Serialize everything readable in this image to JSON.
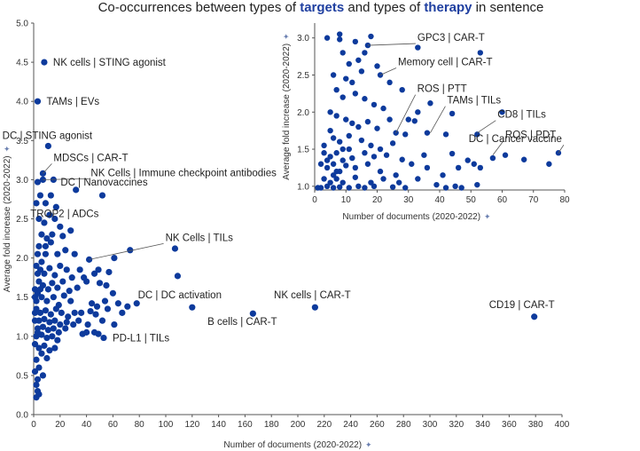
{
  "title": {
    "pre": "Co-occurrences between types of ",
    "em1": "targets",
    "mid": " and types of ",
    "em2": "therapy",
    "post": " in sentence"
  },
  "pin_glyph": "✦",
  "chart_data": [
    {
      "id": "main",
      "type": "scatter",
      "xlabel": "Number of documents (2020-2022)",
      "ylabel": "Average fold increase (2020-2022)",
      "xlim": [
        0,
        400
      ],
      "ylim": [
        0,
        5
      ],
      "xticks": [
        0,
        20,
        40,
        60,
        80,
        100,
        120,
        140,
        160,
        180,
        200,
        220,
        240,
        260,
        280,
        300,
        320,
        340,
        360,
        380,
        400
      ],
      "yticks": [
        0.0,
        0.5,
        1.0,
        1.5,
        2.0,
        2.5,
        3.0,
        3.5,
        4.0,
        4.5,
        5.0
      ],
      "ytick_labels": [
        "0.0",
        "0.5",
        "1.0",
        "1.5",
        "2.0",
        "2.5",
        "3.0",
        "3.5",
        "4.0",
        "4.5",
        "5.0"
      ],
      "points": [
        [
          8,
          4.5
        ],
        [
          3,
          4.0
        ],
        [
          11,
          3.43
        ],
        [
          7,
          3.08
        ],
        [
          7,
          3.0
        ],
        [
          15,
          3.0
        ],
        [
          32,
          2.87
        ],
        [
          52,
          2.8
        ],
        [
          3,
          2.97
        ],
        [
          2,
          2.7
        ],
        [
          5,
          2.8
        ],
        [
          9,
          2.7
        ],
        [
          13,
          2.8
        ],
        [
          17,
          2.65
        ],
        [
          4,
          2.5
        ],
        [
          8,
          2.45
        ],
        [
          12,
          2.55
        ],
        [
          16,
          2.5
        ],
        [
          20,
          2.4
        ],
        [
          6,
          2.3
        ],
        [
          10,
          2.25
        ],
        [
          14,
          2.3
        ],
        [
          9,
          2.15
        ],
        [
          13,
          2.2
        ],
        [
          3,
          2.05
        ],
        [
          18,
          2.05
        ],
        [
          24,
          2.1
        ],
        [
          31,
          2.05
        ],
        [
          42,
          1.98
        ],
        [
          61,
          2.0
        ],
        [
          73,
          2.1
        ],
        [
          2,
          1.9
        ],
        [
          5,
          1.85
        ],
        [
          8,
          1.8
        ],
        [
          12,
          1.87
        ],
        [
          16,
          1.78
        ],
        [
          20,
          1.9
        ],
        [
          25,
          1.85
        ],
        [
          29,
          1.75
        ],
        [
          35,
          1.85
        ],
        [
          38,
          1.75
        ],
        [
          46,
          1.8
        ],
        [
          57,
          1.82
        ],
        [
          4,
          1.7
        ],
        [
          7,
          1.65
        ],
        [
          11,
          1.6
        ],
        [
          14,
          1.68
        ],
        [
          18,
          1.62
        ],
        [
          22,
          1.7
        ],
        [
          27,
          1.58
        ],
        [
          33,
          1.62
        ],
        [
          40,
          1.7
        ],
        [
          50,
          1.68
        ],
        [
          3,
          1.55
        ],
        [
          6,
          1.5
        ],
        [
          10,
          1.45
        ],
        [
          15,
          1.5
        ],
        [
          19,
          1.4
        ],
        [
          23,
          1.52
        ],
        [
          28,
          1.45
        ],
        [
          44,
          1.42
        ],
        [
          48,
          1.38
        ],
        [
          54,
          1.45
        ],
        [
          64,
          1.42
        ],
        [
          71,
          1.38
        ],
        [
          78,
          1.42
        ],
        [
          2,
          1.35
        ],
        [
          5,
          1.3
        ],
        [
          9,
          1.33
        ],
        [
          13,
          1.28
        ],
        [
          17,
          1.35
        ],
        [
          21,
          1.3
        ],
        [
          26,
          1.25
        ],
        [
          31,
          1.3
        ],
        [
          36,
          1.3
        ],
        [
          43,
          1.32
        ],
        [
          47,
          1.28
        ],
        [
          56,
          1.35
        ],
        [
          67,
          1.3
        ],
        [
          4,
          1.2
        ],
        [
          8,
          1.22
        ],
        [
          12,
          1.18
        ],
        [
          16,
          1.2
        ],
        [
          20,
          1.15
        ],
        [
          25,
          1.18
        ],
        [
          30,
          1.15
        ],
        [
          34,
          1.2
        ],
        [
          41,
          1.15
        ],
        [
          52,
          1.2
        ],
        [
          61,
          1.15
        ],
        [
          3,
          1.1
        ],
        [
          7,
          1.12
        ],
        [
          11,
          1.08
        ],
        [
          15,
          1.1
        ],
        [
          19,
          1.05
        ],
        [
          24,
          1.1
        ],
        [
          2,
          1.0
        ],
        [
          6,
          1.02
        ],
        [
          10,
          0.98
        ],
        [
          14,
          1.0
        ],
        [
          18,
          0.95
        ],
        [
          37,
          1.03
        ],
        [
          40,
          1.05
        ],
        [
          46,
          1.05
        ],
        [
          49,
          1.03
        ],
        [
          1,
          0.9
        ],
        [
          4,
          0.85
        ],
        [
          8,
          0.88
        ],
        [
          12,
          0.82
        ],
        [
          16,
          0.85
        ],
        [
          6,
          0.78
        ],
        [
          10,
          0.72
        ],
        [
          2,
          0.7
        ],
        [
          4,
          0.6
        ],
        [
          7,
          0.5
        ],
        [
          1,
          0.55
        ],
        [
          3,
          0.45
        ],
        [
          2,
          0.38
        ],
        [
          3,
          0.3
        ],
        [
          2,
          0.22
        ],
        [
          4,
          0.26
        ],
        [
          1,
          1.6
        ],
        [
          1,
          1.3
        ],
        [
          1,
          1.5
        ],
        [
          2,
          1.45
        ],
        [
          1,
          1.2
        ],
        [
          3,
          1.05
        ],
        [
          5,
          1.6
        ],
        [
          22,
          2.28
        ],
        [
          28,
          2.35
        ],
        [
          9,
          2.05
        ],
        [
          4,
          2.15
        ],
        [
          6,
          1.95
        ],
        [
          3,
          1.8
        ],
        [
          49,
          1.85
        ],
        [
          55,
          1.65
        ],
        [
          60,
          1.55
        ],
        [
          107,
          2.12
        ],
        [
          109,
          1.77
        ],
        [
          120,
          1.37
        ],
        [
          166,
          1.29
        ],
        [
          213,
          1.37
        ],
        [
          379,
          1.25
        ],
        [
          53,
          0.98
        ]
      ],
      "annotations": [
        {
          "label": "NK cells | STING agonist",
          "x": 8,
          "y": 4.5
        },
        {
          "label": "TAMs  | EVs",
          "x": 3,
          "y": 4.0
        },
        {
          "label": "DC | STING agonist",
          "x": 11,
          "y": 3.43
        },
        {
          "label": "MDSCs | CAR-T",
          "x": 7,
          "y": 3.08
        },
        {
          "label": "NK Cells | Immune checkpoint antibodies",
          "x": 7,
          "y": 3.0
        },
        {
          "label": "DC | Nanovaccines",
          "x": 52,
          "y": 2.8
        },
        {
          "label": "TROP2 | ADCs",
          "x": 20,
          "y": 2.4
        },
        {
          "label": "NK Cells | TILs",
          "x": 42,
          "y": 1.98
        },
        {
          "label": "DC | DC activation",
          "x": 120,
          "y": 1.37
        },
        {
          "label": "NK cells | CAR-T",
          "x": 213,
          "y": 1.37
        },
        {
          "label": "B cells | CAR-T",
          "x": 166,
          "y": 1.29
        },
        {
          "label": "CD19 | CAR-T",
          "x": 379,
          "y": 1.25
        },
        {
          "label": "PD-L1 | TILs",
          "x": 53,
          "y": 0.98
        }
      ]
    },
    {
      "id": "inset",
      "type": "scatter",
      "xlabel": "Number of documents (2020-2022)",
      "ylabel": "Average fold increase (2020-2022)",
      "xlim": [
        0,
        80
      ],
      "ylim": [
        0.95,
        3.2
      ],
      "xticks": [
        0,
        10,
        20,
        30,
        40,
        50,
        60,
        70,
        80
      ],
      "yticks": [
        1.0,
        1.5,
        2.0,
        2.5,
        3.0
      ],
      "ytick_labels": [
        "1.0",
        "1.5",
        "2.0",
        "2.5",
        "3.0"
      ],
      "points": [
        [
          33,
          2.87
        ],
        [
          17,
          2.9
        ],
        [
          16,
          2.8
        ],
        [
          20,
          2.62
        ],
        [
          53,
          2.8
        ],
        [
          8,
          3.05
        ],
        [
          8,
          2.98
        ],
        [
          13,
          2.95
        ],
        [
          18,
          3.02
        ],
        [
          21,
          2.5
        ],
        [
          9,
          2.8
        ],
        [
          11,
          2.65
        ],
        [
          14,
          2.7
        ],
        [
          4,
          3.0
        ],
        [
          6,
          2.5
        ],
        [
          10,
          2.45
        ],
        [
          12,
          2.4
        ],
        [
          15,
          2.55
        ],
        [
          24,
          2.4
        ],
        [
          28,
          2.3
        ],
        [
          7,
          2.3
        ],
        [
          9,
          2.2
        ],
        [
          13,
          2.25
        ],
        [
          16,
          2.18
        ],
        [
          19,
          2.1
        ],
        [
          22,
          2.05
        ],
        [
          33,
          2.0
        ],
        [
          37,
          2.12
        ],
        [
          44,
          1.98
        ],
        [
          60,
          2.0
        ],
        [
          30,
          1.9
        ],
        [
          32,
          1.88
        ],
        [
          5,
          2.0
        ],
        [
          7,
          1.95
        ],
        [
          10,
          1.9
        ],
        [
          12,
          1.85
        ],
        [
          14,
          1.8
        ],
        [
          17,
          1.87
        ],
        [
          20,
          1.78
        ],
        [
          24,
          1.9
        ],
        [
          26,
          1.72
        ],
        [
          42,
          1.7
        ],
        [
          29,
          1.7
        ],
        [
          36,
          1.72
        ],
        [
          52,
          1.7
        ],
        [
          3,
          1.55
        ],
        [
          6,
          1.65
        ],
        [
          8,
          1.6
        ],
        [
          11,
          1.68
        ],
        [
          15,
          1.62
        ],
        [
          18,
          1.55
        ],
        [
          21,
          1.5
        ],
        [
          25,
          1.58
        ],
        [
          3,
          1.45
        ],
        [
          5,
          1.4
        ],
        [
          7,
          1.45
        ],
        [
          9,
          1.5
        ],
        [
          12,
          1.38
        ],
        [
          16,
          1.45
        ],
        [
          19,
          1.4
        ],
        [
          23,
          1.42
        ],
        [
          28,
          1.36
        ],
        [
          35,
          1.42
        ],
        [
          44,
          1.44
        ],
        [
          49,
          1.35
        ],
        [
          57,
          1.38
        ],
        [
          61,
          1.42
        ],
        [
          67,
          1.36
        ],
        [
          78,
          1.45
        ],
        [
          75,
          1.3
        ],
        [
          2,
          1.3
        ],
        [
          4,
          1.25
        ],
        [
          6,
          1.3
        ],
        [
          8,
          1.2
        ],
        [
          10,
          1.28
        ],
        [
          13,
          1.25
        ],
        [
          17,
          1.3
        ],
        [
          21,
          1.2
        ],
        [
          26,
          1.15
        ],
        [
          31,
          1.3
        ],
        [
          36,
          1.25
        ],
        [
          41,
          1.15
        ],
        [
          46,
          1.25
        ],
        [
          51,
          1.3
        ],
        [
          53,
          1.25
        ],
        [
          3,
          1.1
        ],
        [
          6,
          1.15
        ],
        [
          9,
          1.05
        ],
        [
          13,
          1.12
        ],
        [
          18,
          1.05
        ],
        [
          22,
          1.1
        ],
        [
          27,
          1.05
        ],
        [
          33,
          1.1
        ],
        [
          39,
          1.02
        ],
        [
          45,
          1.0
        ],
        [
          47,
          0.98
        ],
        [
          42,
          0.98
        ],
        [
          52,
          1.02
        ],
        [
          1,
          0.98
        ],
        [
          2,
          0.98
        ],
        [
          4,
          1.0
        ],
        [
          6,
          0.98
        ],
        [
          8,
          0.99
        ],
        [
          11,
          0.98
        ],
        [
          14,
          1.0
        ],
        [
          16,
          0.98
        ],
        [
          19,
          1.0
        ],
        [
          25,
          0.99
        ],
        [
          29,
          0.98
        ],
        [
          5,
          1.05
        ],
        [
          7,
          1.1
        ],
        [
          9,
          1.35
        ],
        [
          11,
          1.5
        ],
        [
          4,
          1.35
        ],
        [
          5,
          1.75
        ],
        [
          7,
          1.2
        ]
      ],
      "annotations": [
        {
          "label": "GPC3 | CAR-T",
          "x": 17,
          "y": 2.9
        },
        {
          "label": "Memory cell | CAR-T",
          "x": 21,
          "y": 2.5
        },
        {
          "label": "ROS | PTT",
          "x": 26,
          "y": 1.72
        },
        {
          "label": "TAMs | TILs",
          "x": 37,
          "y": 1.72
        },
        {
          "label": "CD8 | TILs",
          "x": 52,
          "y": 1.72
        },
        {
          "label": "ROS | PDT",
          "x": 57,
          "y": 1.42
        },
        {
          "label": "DC | Cancer vaccine",
          "x": 78,
          "y": 1.45
        }
      ]
    }
  ]
}
